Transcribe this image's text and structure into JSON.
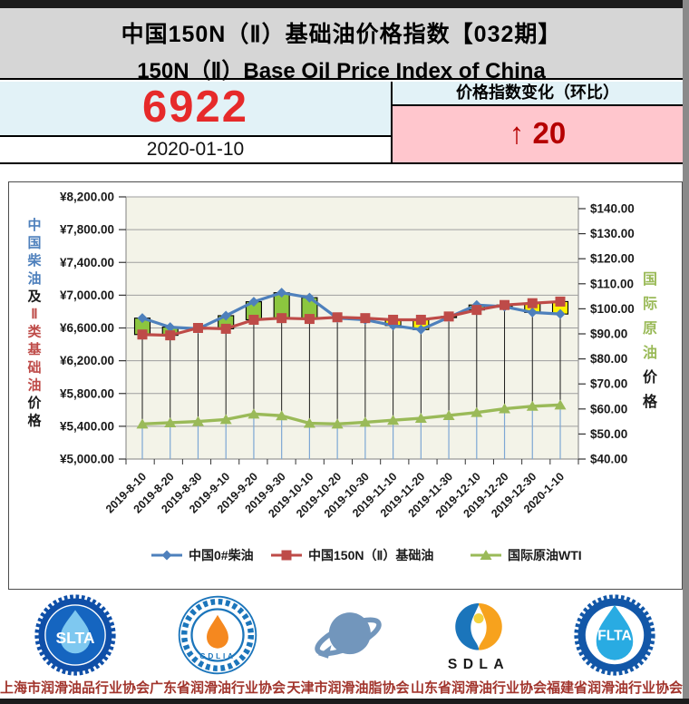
{
  "header": {
    "title_cn": "中国150N（Ⅱ）基础油价格指数【032期】",
    "title_en": "150N（Ⅱ）Base Oil Price Index of China",
    "index_value": "6922",
    "index_date": "2020-01-10",
    "change_label": "价格指数变化（环比）",
    "change_arrow": "↑",
    "change_amount": "20"
  },
  "colors": {
    "title_bg": "#d6d6d6",
    "cell_cyan": "#e2f2f7",
    "cell_pink": "#ffc6cd",
    "index_red": "#e62a2a",
    "change_red": "#b50000",
    "caption_red": "#a1342c",
    "diesel_blue": "#4e80bc",
    "baseoil_red": "#be4b48",
    "wti_green": "#9aba58",
    "up_bar_green": "#8cc63f",
    "down_bar_yellow": "#fff200",
    "plot_bg": "#f3f3e8"
  },
  "chart_data": {
    "type": "line",
    "title": "",
    "grid": true,
    "legend_position": "bottom",
    "categories": [
      "2019-8-10",
      "2019-8-20",
      "2019-8-30",
      "2019-9-10",
      "2019-9-20",
      "2019-9-30",
      "2019-10-10",
      "2019-10-20",
      "2019-10-30",
      "2019-11-10",
      "2019-11-20",
      "2019-11-30",
      "2019-12-10",
      "2019-12-20",
      "2019-12-30",
      "2020-1-10"
    ],
    "series": [
      {
        "name": "中国0#柴油",
        "axis": "left",
        "color": "#4e80bc",
        "marker": "diamond",
        "values": [
          6720,
          6610,
          6590,
          6750,
          6920,
          7030,
          6970,
          6720,
          6700,
          6630,
          6580,
          6730,
          6880,
          6860,
          6790,
          6770
        ]
      },
      {
        "name": "中国150N（Ⅱ）基础油",
        "axis": "left",
        "color": "#be4b48",
        "marker": "square",
        "values": [
          6520,
          6510,
          6600,
          6590,
          6700,
          6720,
          6710,
          6730,
          6720,
          6700,
          6700,
          6740,
          6820,
          6880,
          6902,
          6922
        ]
      },
      {
        "name": "国际原油WTI",
        "axis": "right",
        "color": "#9aba58",
        "marker": "triangle",
        "values": [
          54.0,
          54.5,
          55.0,
          55.8,
          58.0,
          57.3,
          54.3,
          54.0,
          54.7,
          55.5,
          56.3,
          57.4,
          58.6,
          60.1,
          61.1,
          61.6
        ]
      }
    ],
    "left_axis": {
      "min": 5000,
      "max": 8200,
      "step": 400,
      "tick_labels": [
        "¥5,000.00",
        "¥5,400.00",
        "¥5,800.00",
        "¥6,200.00",
        "¥6,600.00",
        "¥7,000.00",
        "¥7,400.00",
        "¥7,800.00",
        "¥8,200.00"
      ],
      "title_segments": [
        {
          "text": "中国柴油",
          "color": "#4e80bc"
        },
        {
          "text": "及",
          "color": "#1a1a1a"
        },
        {
          "text": "Ⅱ类基础油",
          "color": "#be4b48"
        },
        {
          "text": "价格",
          "color": "#1a1a1a"
        }
      ]
    },
    "right_axis": {
      "min": 40,
      "max": 140,
      "step": 10,
      "tick_labels": [
        "$40.00",
        "$50.00",
        "$60.00",
        "$70.00",
        "$80.00",
        "$90.00",
        "$100.00",
        "$110.00",
        "$120.00",
        "$130.00",
        "$140.00"
      ],
      "title_segments": [
        {
          "text": "国际原油",
          "color": "#9aba58"
        },
        {
          "text": "价格",
          "color": "#1a1a1a"
        }
      ]
    },
    "updown_bars": {
      "up_color": "#8cc63f",
      "down_color": "#fff200"
    }
  },
  "footer": {
    "associations": [
      {
        "abbr": "SLTA",
        "name": "上海市润滑油品行业协会"
      },
      {
        "abbr": "GDLIA",
        "name": "广东省润滑油行业协会"
      },
      {
        "abbr": "",
        "name": "天津市润滑油脂协会"
      },
      {
        "abbr": "SDLA",
        "name": "山东省润滑油行业协会"
      },
      {
        "abbr": "FLTA",
        "name": "福建省润滑油行业协会"
      }
    ]
  }
}
